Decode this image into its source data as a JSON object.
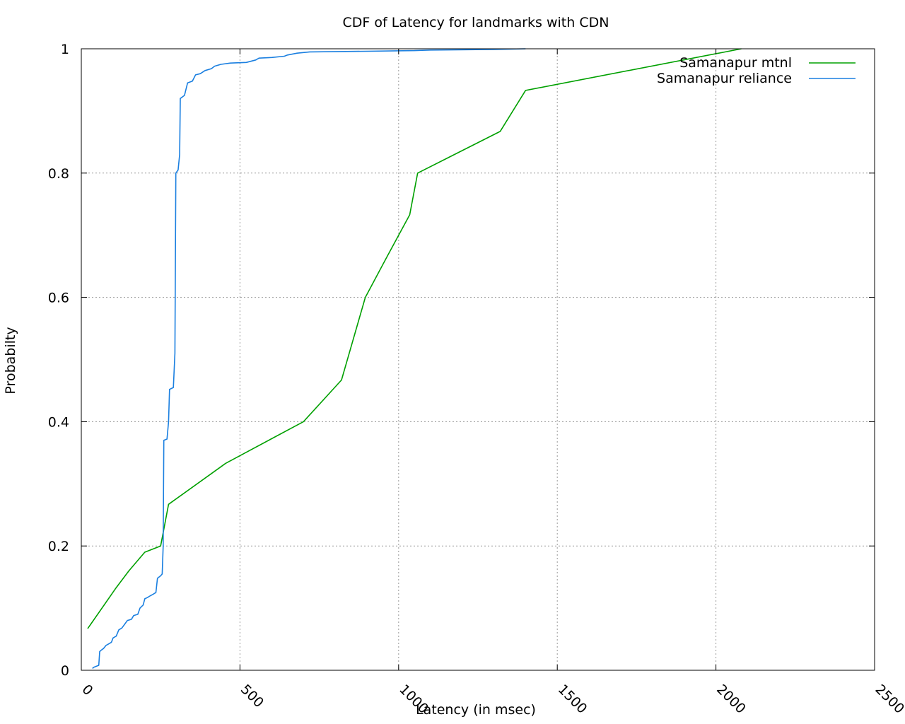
{
  "chart_data": {
    "type": "line",
    "title": "CDF of Latency for landmarks with CDN",
    "xlabel": "Latency (in msec)",
    "ylabel": "Probabilty",
    "xlim": [
      0,
      2500
    ],
    "ylim": [
      0,
      1
    ],
    "x_ticks": [
      {
        "value": 0,
        "label": "0"
      },
      {
        "value": 500,
        "label": "500"
      },
      {
        "value": 1000,
        "label": "1000"
      },
      {
        "value": 1500,
        "label": "1500"
      },
      {
        "value": 2000,
        "label": "2000"
      },
      {
        "value": 2500,
        "label": "2500"
      }
    ],
    "y_ticks": [
      {
        "value": 0,
        "label": "0"
      },
      {
        "value": 0.2,
        "label": "0.2"
      },
      {
        "value": 0.4,
        "label": "0.4"
      },
      {
        "value": 0.6,
        "label": "0.6"
      },
      {
        "value": 0.8,
        "label": "0.8"
      },
      {
        "value": 1,
        "label": "1"
      }
    ],
    "grid": true,
    "legend_position": "top-right",
    "series": [
      {
        "name": "Samanapur mtnl",
        "color": "#00a000",
        "points": [
          [
            20,
            0.067
          ],
          [
            110,
            0.133
          ],
          [
            150,
            0.16
          ],
          [
            200,
            0.19
          ],
          [
            250,
            0.2
          ],
          [
            275,
            0.267
          ],
          [
            455,
            0.333
          ],
          [
            700,
            0.4
          ],
          [
            820,
            0.467
          ],
          [
            895,
            0.6
          ],
          [
            965,
            0.667
          ],
          [
            1035,
            0.733
          ],
          [
            1060,
            0.8
          ],
          [
            1320,
            0.867
          ],
          [
            1400,
            0.933
          ],
          [
            2080,
            1.0
          ]
        ]
      },
      {
        "name": "Samanapur reliance",
        "color": "#1a7fe0",
        "points": [
          [
            35,
            0.003
          ],
          [
            40,
            0.005
          ],
          [
            55,
            0.008
          ],
          [
            58,
            0.03
          ],
          [
            62,
            0.032
          ],
          [
            70,
            0.035
          ],
          [
            78,
            0.04
          ],
          [
            85,
            0.042
          ],
          [
            95,
            0.045
          ],
          [
            100,
            0.052
          ],
          [
            110,
            0.055
          ],
          [
            118,
            0.065
          ],
          [
            128,
            0.068
          ],
          [
            138,
            0.075
          ],
          [
            145,
            0.08
          ],
          [
            158,
            0.082
          ],
          [
            165,
            0.088
          ],
          [
            178,
            0.09
          ],
          [
            185,
            0.1
          ],
          [
            195,
            0.105
          ],
          [
            200,
            0.115
          ],
          [
            208,
            0.117
          ],
          [
            218,
            0.12
          ],
          [
            225,
            0.122
          ],
          [
            235,
            0.125
          ],
          [
            240,
            0.148
          ],
          [
            250,
            0.152
          ],
          [
            255,
            0.155
          ],
          [
            258,
            0.2
          ],
          [
            260,
            0.37
          ],
          [
            270,
            0.372
          ],
          [
            275,
            0.4
          ],
          [
            278,
            0.452
          ],
          [
            290,
            0.455
          ],
          [
            295,
            0.51
          ],
          [
            298,
            0.8
          ],
          [
            305,
            0.805
          ],
          [
            310,
            0.83
          ],
          [
            312,
            0.92
          ],
          [
            325,
            0.925
          ],
          [
            335,
            0.945
          ],
          [
            350,
            0.948
          ],
          [
            360,
            0.958
          ],
          [
            375,
            0.96
          ],
          [
            390,
            0.965
          ],
          [
            410,
            0.968
          ],
          [
            420,
            0.972
          ],
          [
            440,
            0.975
          ],
          [
            470,
            0.977
          ],
          [
            520,
            0.978
          ],
          [
            550,
            0.982
          ],
          [
            560,
            0.985
          ],
          [
            600,
            0.986
          ],
          [
            640,
            0.988
          ],
          [
            650,
            0.99
          ],
          [
            680,
            0.993
          ],
          [
            720,
            0.995
          ],
          [
            900,
            0.996
          ],
          [
            1050,
            0.997
          ],
          [
            1100,
            0.998
          ],
          [
            1300,
            0.999
          ],
          [
            1400,
            1.0
          ]
        ]
      }
    ]
  }
}
